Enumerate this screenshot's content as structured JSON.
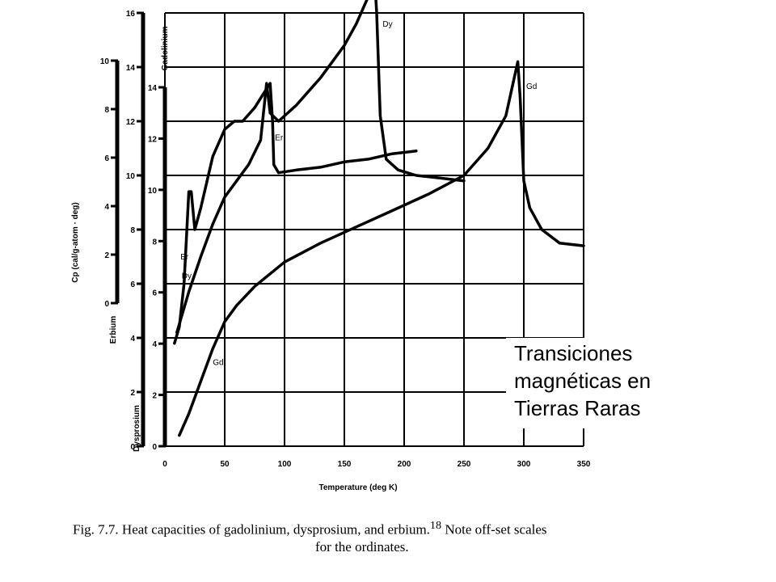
{
  "chart_data": {
    "type": "line",
    "title": "",
    "xlabel": "Temperature (deg K)",
    "ylabel": "Cp (cal/g-atom · deg)",
    "xlim": [
      0,
      350
    ],
    "x_ticks": [
      "0",
      "50",
      "100",
      "150",
      "200",
      "250",
      "300",
      "350"
    ],
    "grid": true,
    "scales": [
      {
        "name": "Gadolinium",
        "ticks": [
          "0",
          "2",
          "4",
          "6",
          "8",
          "10",
          "12",
          "14",
          "16"
        ],
        "ylim": [
          0,
          16
        ]
      },
      {
        "name": "Erbium",
        "ticks": [
          "0",
          "2",
          "4",
          "6",
          "8",
          "10"
        ],
        "ylim": [
          -4,
          12
        ]
      },
      {
        "name": "Dysprosium",
        "ticks": [
          "0",
          "2",
          "4",
          "6",
          "8",
          "10",
          "12",
          "14"
        ],
        "ylim": [
          -2,
          14
        ]
      }
    ],
    "series": [
      {
        "name": "Er",
        "scale": "Erbium",
        "label_position": [
          13,
          2.9
        ],
        "peak_label_position": [
          92,
          7.3
        ],
        "points": [
          [
            8,
            -0.2
          ],
          [
            12,
            0.4
          ],
          [
            16,
            2.0
          ],
          [
            20,
            5.4
          ],
          [
            22,
            5.4
          ],
          [
            25,
            4.0
          ],
          [
            30,
            4.8
          ],
          [
            40,
            6.7
          ],
          [
            50,
            7.7
          ],
          [
            58,
            8.0
          ],
          [
            65,
            8.0
          ],
          [
            75,
            8.5
          ],
          [
            85,
            9.2
          ],
          [
            88,
            9.4
          ],
          [
            90,
            8.0
          ],
          [
            91,
            6.4
          ],
          [
            95,
            6.1
          ],
          [
            110,
            6.2
          ],
          [
            130,
            6.3
          ],
          [
            150,
            6.5
          ],
          [
            170,
            6.6
          ],
          [
            190,
            6.8
          ],
          [
            210,
            6.9
          ]
        ]
      },
      {
        "name": "Dy",
        "scale": "Dysprosium",
        "label_position": [
          14,
          4.2
        ],
        "peak_label_position": [
          182,
          13.5
        ],
        "points": [
          [
            10,
            2.2
          ],
          [
            20,
            3.7
          ],
          [
            30,
            5.0
          ],
          [
            40,
            6.2
          ],
          [
            50,
            7.2
          ],
          [
            60,
            7.8
          ],
          [
            70,
            8.4
          ],
          [
            80,
            9.3
          ],
          [
            85,
            11.4
          ],
          [
            88,
            10.3
          ],
          [
            95,
            10.0
          ],
          [
            110,
            10.6
          ],
          [
            130,
            11.6
          ],
          [
            150,
            12.8
          ],
          [
            160,
            13.6
          ],
          [
            170,
            14.6
          ],
          [
            175,
            15.5
          ],
          [
            177,
            14.0
          ],
          [
            180,
            10.2
          ],
          [
            185,
            8.6
          ],
          [
            195,
            8.2
          ],
          [
            210,
            8.0
          ],
          [
            230,
            7.9
          ],
          [
            250,
            7.8
          ]
        ]
      },
      {
        "name": "Gd",
        "scale": "Gadolinium",
        "label_position": [
          40,
          3.0
        ],
        "peak_label_position": [
          302,
          13.2
        ],
        "points": [
          [
            12,
            0.4
          ],
          [
            20,
            1.2
          ],
          [
            30,
            2.4
          ],
          [
            40,
            3.6
          ],
          [
            50,
            4.6
          ],
          [
            60,
            5.2
          ],
          [
            75,
            5.9
          ],
          [
            100,
            6.8
          ],
          [
            130,
            7.5
          ],
          [
            160,
            8.1
          ],
          [
            190,
            8.7
          ],
          [
            220,
            9.3
          ],
          [
            250,
            10.0
          ],
          [
            270,
            11.0
          ],
          [
            285,
            12.2
          ],
          [
            290,
            13.2
          ],
          [
            295,
            14.2
          ],
          [
            297,
            12.8
          ],
          [
            300,
            9.8
          ],
          [
            305,
            8.8
          ],
          [
            315,
            8.0
          ],
          [
            330,
            7.5
          ],
          [
            350,
            7.4
          ]
        ]
      }
    ]
  },
  "caption": {
    "line1": "Fig. 7.7.  Heat capacities of gadolinium, dysprosium, and erbium.",
    "ref": "18",
    "line1_end": "  Note off-set scales",
    "line2": "for the ordinates."
  },
  "overlay": {
    "line1": "Transiciones",
    "line2": "magnéticas en",
    "line3": "Tierras Raras"
  }
}
